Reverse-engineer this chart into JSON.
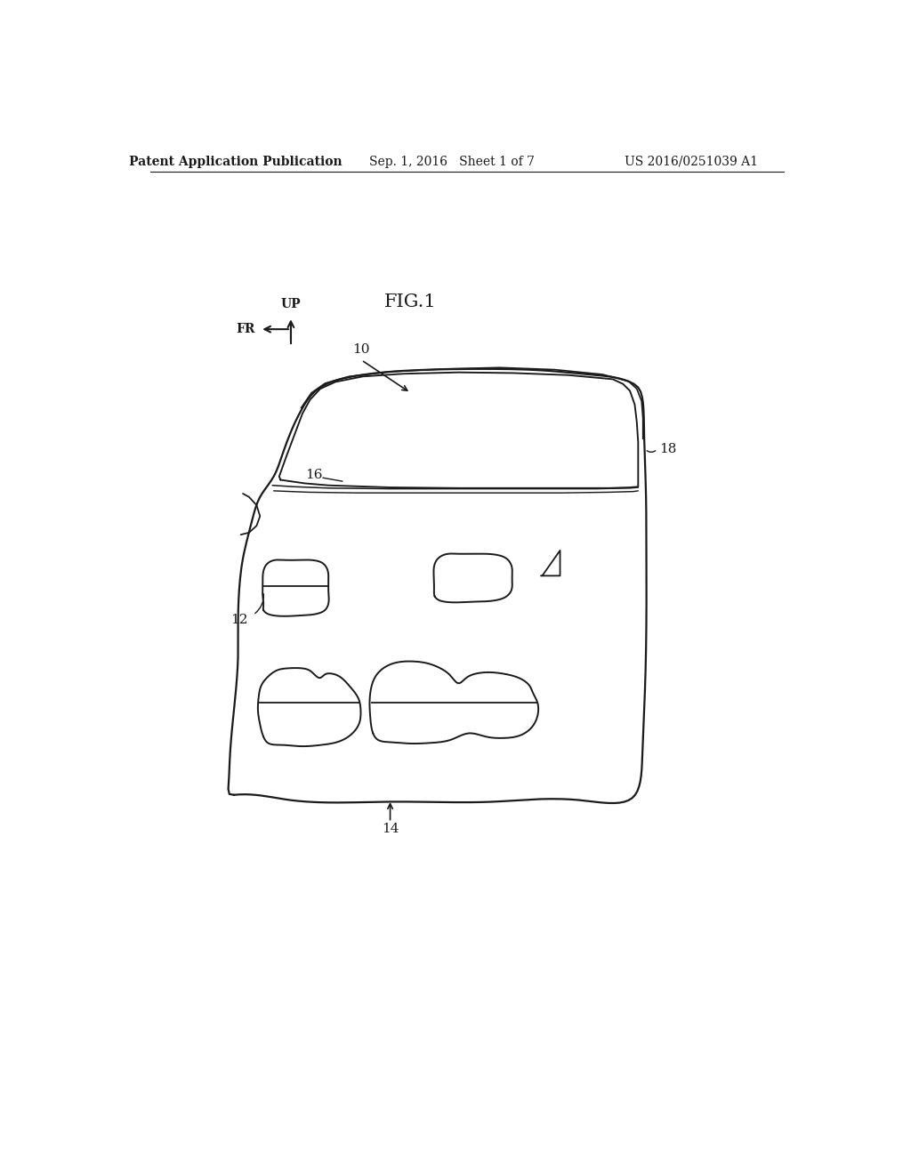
{
  "title": "FIG.1",
  "header_left": "Patent Application Publication",
  "header_center": "Sep. 1, 2016   Sheet 1 of 7",
  "header_right": "US 2016/0251039 A1",
  "bg_color": "#ffffff",
  "line_color": "#1a1a1a",
  "fig_title_fontsize": 15,
  "header_fontsize": 10,
  "label_fontsize": 11
}
